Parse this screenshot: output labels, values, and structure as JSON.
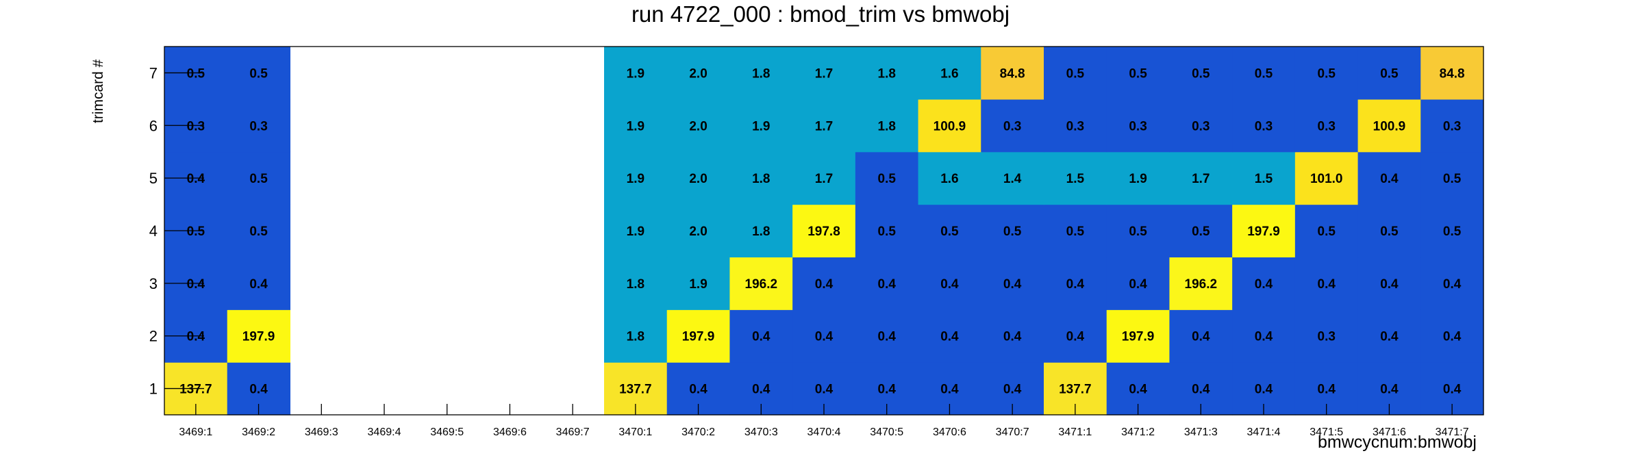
{
  "chart_data": {
    "type": "heatmap",
    "title": "run 4722_000 : bmod_trim vs bmwobj",
    "xlabel": "bmwcycnum:bmwobj",
    "ylabel": "trimcard #",
    "x_categories": [
      "3469:1",
      "3469:2",
      "3469:3",
      "3469:4",
      "3469:5",
      "3469:6",
      "3469:7",
      "3470:1",
      "3470:2",
      "3470:3",
      "3470:4",
      "3470:5",
      "3470:6",
      "3470:7",
      "3471:1",
      "3471:2",
      "3471:3",
      "3471:4",
      "3471:5",
      "3471:6",
      "3471:7"
    ],
    "y_categories": [
      "1",
      "2",
      "3",
      "4",
      "5",
      "6",
      "7"
    ],
    "values": [
      [
        "137.7",
        "0.4",
        null,
        null,
        null,
        null,
        null,
        "137.7",
        "0.4",
        "0.4",
        "0.4",
        "0.4",
        "0.4",
        "0.4",
        "137.7",
        "0.4",
        "0.4",
        "0.4",
        "0.4",
        "0.4",
        "0.4"
      ],
      [
        "0.4",
        "197.9",
        null,
        null,
        null,
        null,
        null,
        "1.8",
        "197.9",
        "0.4",
        "0.4",
        "0.4",
        "0.4",
        "0.4",
        "0.4",
        "197.9",
        "0.4",
        "0.4",
        "0.3",
        "0.4",
        "0.4"
      ],
      [
        "0.4",
        "0.4",
        null,
        null,
        null,
        null,
        null,
        "1.8",
        "1.9",
        "196.2",
        "0.4",
        "0.4",
        "0.4",
        "0.4",
        "0.4",
        "0.4",
        "196.2",
        "0.4",
        "0.4",
        "0.4",
        "0.4"
      ],
      [
        "0.5",
        "0.5",
        null,
        null,
        null,
        null,
        null,
        "1.9",
        "2.0",
        "1.8",
        "197.8",
        "0.5",
        "0.5",
        "0.5",
        "0.5",
        "0.5",
        "0.5",
        "197.9",
        "0.5",
        "0.5",
        "0.5"
      ],
      [
        "0.4",
        "0.5",
        null,
        null,
        null,
        null,
        null,
        "1.9",
        "2.0",
        "1.8",
        "1.7",
        "0.5",
        "1.6",
        "1.4",
        "1.5",
        "1.9",
        "1.7",
        "1.5",
        "101.0",
        "0.4",
        "0.5"
      ],
      [
        "0.3",
        "0.3",
        null,
        null,
        null,
        null,
        null,
        "1.9",
        "2.0",
        "1.9",
        "1.7",
        "1.8",
        "100.9",
        "0.3",
        "0.3",
        "0.3",
        "0.3",
        "0.3",
        "0.3",
        "100.9",
        "0.3"
      ],
      [
        "0.5",
        "0.5",
        null,
        null,
        null,
        null,
        null,
        "1.9",
        "2.0",
        "1.8",
        "1.7",
        "1.8",
        "1.6",
        "84.8",
        "0.5",
        "0.5",
        "0.5",
        "0.5",
        "0.5",
        "0.5",
        "84.8"
      ]
    ],
    "colors": {
      "c030": "#2a3da8",
      "c031": "#1a4cc4",
      "c040": "#1c4ecb",
      "c041": "#1853d4",
      "c050": "#1262dc",
      "c140": "#178ad0",
      "c150": "#1c97d2",
      "c160": "#18a2d2",
      "c170": "#0ba6d0",
      "c180": "#08a5cf",
      "c190": "#0aa4ce",
      "c200": "#09a3cc",
      "c848": "#f8ca35",
      "c1009": "#fbe21c",
      "c1377": "#f8e428",
      "c1962": "#fbf61a",
      "c1978": "#fcf812",
      "c1979": "#fcf812"
    },
    "grid": false,
    "legend": "none"
  }
}
